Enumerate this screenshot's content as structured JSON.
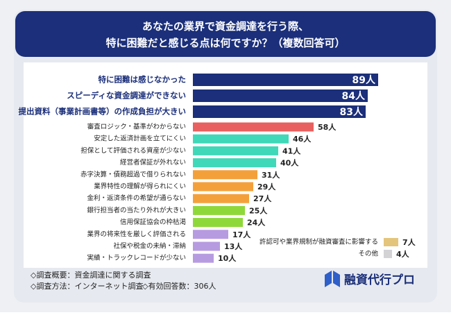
{
  "chart_data": [
    {
      "type": "bar",
      "orientation": "horizontal",
      "title": "あなたの業界で資金調達を行う際、\n特に困難だと感じる点は何ですか？（複数回答可）",
      "categories": [
        "特に困難は感じなかった",
        "スピーディな資金調達ができない",
        "提出資料（事業計画書等）の作成負担が大きい",
        "審査ロジック・基準がわからない",
        "安定した返済計画を立てにくい",
        "担保として評価される資産が少ない",
        "経営者保証が外れない",
        "赤字決算・債務超過で借りられない",
        "業界特性の理解が得られにくい",
        "金利・返済条件の希望が通らない",
        "銀行担当者の当たり外れが大きい",
        "信用保証協会の枠枯渇",
        "業界の将来性を厳しく評価される",
        "社保や税金の未納・滞納",
        "実績・トラックレコードが少ない"
      ],
      "values": [
        89,
        84,
        83,
        58,
        46,
        41,
        40,
        31,
        29,
        27,
        25,
        24,
        17,
        13,
        10
      ],
      "value_labels": [
        "89人",
        "84人",
        "83人",
        "58人",
        "46人",
        "41人",
        "40人",
        "31人",
        "29人",
        "27人",
        "25人",
        "24人",
        "17人",
        "13人",
        "10人"
      ],
      "colors": [
        "#1b2f7a",
        "#1b2f7a",
        "#1b2f7a",
        "#e8605f",
        "#3fd8b8",
        "#3fd8b8",
        "#3fd8b8",
        "#f4a03a",
        "#f4a03a",
        "#f4a03a",
        "#8fd83a",
        "#8fd83a",
        "#b79be0",
        "#b79be0",
        "#b79be0"
      ]
    },
    {
      "type": "bar",
      "orientation": "horizontal",
      "categories": [
        "許認可や業界規制が融資審査に影響する",
        "その他"
      ],
      "values": [
        7,
        4
      ],
      "value_labels": [
        "7人",
        "4人"
      ],
      "colors": [
        "#e4c57c",
        "#d3d3d6"
      ]
    }
  ],
  "notes": [
    "◇調査概要：資金調達に関する調査",
    "◇調査方法：インターネット調査",
    "◇有効回答数：306人"
  ],
  "brand": "融資代行プロ"
}
